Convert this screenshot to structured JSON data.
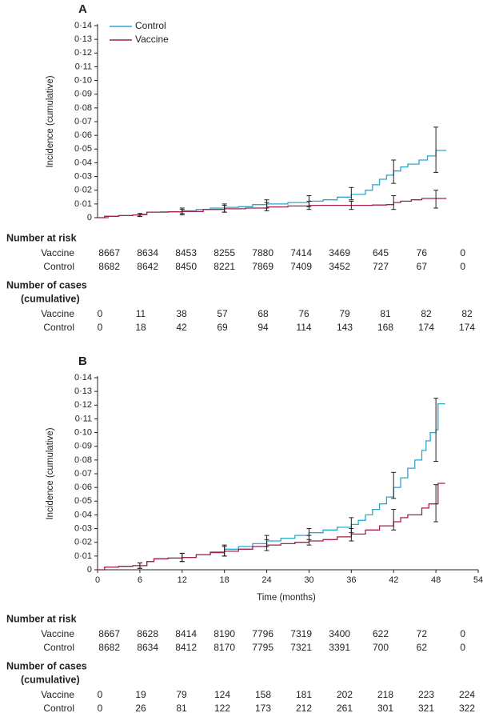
{
  "chart_data": [
    {
      "type": "line",
      "panel": "A",
      "ylabel": "Incidence (cumulative)",
      "xlabel": "",
      "xlim": [
        0,
        54
      ],
      "ylim": [
        0,
        0.14
      ],
      "x_ticks": [],
      "y_ticks": [
        0,
        0.01,
        0.02,
        0.03,
        0.04,
        0.05,
        0.06,
        0.07,
        0.08,
        0.09,
        0.1,
        0.11,
        0.12,
        0.13,
        0.14
      ],
      "y_tick_labels": [
        "0",
        "0·01",
        "0·02",
        "0·03",
        "0·04",
        "0·05",
        "0·06",
        "0·07",
        "0·08",
        "0·09",
        "0·10",
        "0·11",
        "0·12",
        "0·13",
        "0·14"
      ],
      "legend_position": "top-left",
      "series": [
        {
          "name": "Control",
          "color": "#2aa7cf",
          "points": [
            [
              0,
              0
            ],
            [
              1,
              0.001
            ],
            [
              3,
              0.0015
            ],
            [
              5,
              0.002
            ],
            [
              6,
              0.0025
            ],
            [
              7,
              0.004
            ],
            [
              9,
              0.0042
            ],
            [
              12,
              0.005
            ],
            [
              14,
              0.006
            ],
            [
              16,
              0.007
            ],
            [
              18,
              0.0075
            ],
            [
              20,
              0.008
            ],
            [
              22,
              0.0095
            ],
            [
              24,
              0.01
            ],
            [
              27,
              0.011
            ],
            [
              30,
              0.012
            ],
            [
              32,
              0.013
            ],
            [
              34,
              0.015
            ],
            [
              36,
              0.017
            ],
            [
              38,
              0.02
            ],
            [
              39,
              0.024
            ],
            [
              40,
              0.028
            ],
            [
              41,
              0.031
            ],
            [
              42,
              0.034
            ],
            [
              43,
              0.037
            ],
            [
              44,
              0.039
            ],
            [
              45,
              0.039
            ],
            [
              45.6,
              0.042
            ],
            [
              46.2,
              0.042
            ],
            [
              46.8,
              0.045
            ],
            [
              47.4,
              0.045
            ],
            [
              48,
              0.049
            ],
            [
              49.5,
              0.049
            ]
          ],
          "error_bars": [
            [
              6,
              0.002,
              0.001,
              0.003
            ],
            [
              12,
              0.0045,
              0.003,
              0.006
            ],
            [
              18,
              0.0072,
              0.004,
              0.01
            ],
            [
              24,
              0.01,
              0.007,
              0.013
            ],
            [
              30,
              0.012,
              0.008,
              0.016
            ],
            [
              36,
              0.017,
              0.013,
              0.022
            ],
            [
              42,
              0.033,
              0.025,
              0.042
            ],
            [
              48,
              0.049,
              0.033,
              0.066
            ]
          ]
        },
        {
          "name": "Vaccine",
          "color": "#a3224a",
          "points": [
            [
              0,
              0
            ],
            [
              1,
              0.001
            ],
            [
              3,
              0.0015
            ],
            [
              5,
              0.002
            ],
            [
              6,
              0.0022
            ],
            [
              7,
              0.004
            ],
            [
              10,
              0.0043
            ],
            [
              12,
              0.0045
            ],
            [
              15,
              0.006
            ],
            [
              18,
              0.0065
            ],
            [
              21,
              0.007
            ],
            [
              24,
              0.0078
            ],
            [
              27,
              0.0085
            ],
            [
              30,
              0.009
            ],
            [
              33,
              0.009
            ],
            [
              36,
              0.009
            ],
            [
              39,
              0.0092
            ],
            [
              41,
              0.0095
            ],
            [
              42,
              0.011
            ],
            [
              43,
              0.012
            ],
            [
              44.5,
              0.013
            ],
            [
              46,
              0.014
            ],
            [
              49.5,
              0.014
            ]
          ],
          "error_bars": [
            [
              6,
              0.0018,
              0.0008,
              0.003
            ],
            [
              12,
              0.0045,
              0.002,
              0.007
            ],
            [
              18,
              0.0065,
              0.004,
              0.009
            ],
            [
              24,
              0.0078,
              0.005,
              0.011
            ],
            [
              30,
              0.009,
              0.006,
              0.012
            ],
            [
              36,
              0.009,
              0.006,
              0.012
            ],
            [
              42,
              0.011,
              0.006,
              0.016
            ],
            [
              48,
              0.014,
              0.007,
              0.02
            ]
          ]
        }
      ]
    },
    {
      "type": "line",
      "panel": "B",
      "ylabel": "Incidence (cumulative)",
      "xlabel": "Time (months)",
      "xlim": [
        0,
        54
      ],
      "ylim": [
        0,
        0.14
      ],
      "x_ticks": [
        0,
        6,
        12,
        18,
        24,
        30,
        36,
        42,
        48,
        54
      ],
      "x_tick_labels": [
        "0",
        "6",
        "12",
        "18",
        "24",
        "30",
        "36",
        "42",
        "48",
        "54"
      ],
      "y_ticks": [
        0,
        0.01,
        0.02,
        0.03,
        0.04,
        0.05,
        0.06,
        0.07,
        0.08,
        0.09,
        0.1,
        0.11,
        0.12,
        0.13,
        0.14
      ],
      "y_tick_labels": [
        "0",
        "0·01",
        "0·02",
        "0·03",
        "0·04",
        "0·05",
        "0·06",
        "0·07",
        "0·08",
        "0·09",
        "0·10",
        "0·11",
        "0·12",
        "0·13",
        "0·14"
      ],
      "series": [
        {
          "name": "Control",
          "color": "#2aa7cf",
          "points": [
            [
              0,
              0
            ],
            [
              1,
              0.002
            ],
            [
              3,
              0.0025
            ],
            [
              5,
              0.003
            ],
            [
              6,
              0.003
            ],
            [
              7,
              0.006
            ],
            [
              8,
              0.008
            ],
            [
              10,
              0.0085
            ],
            [
              12,
              0.009
            ],
            [
              14,
              0.011
            ],
            [
              16,
              0.013
            ],
            [
              18,
              0.015
            ],
            [
              20,
              0.017
            ],
            [
              22,
              0.019
            ],
            [
              24,
              0.021
            ],
            [
              26,
              0.023
            ],
            [
              28,
              0.025
            ],
            [
              30,
              0.027
            ],
            [
              32,
              0.029
            ],
            [
              34,
              0.031
            ],
            [
              36,
              0.033
            ],
            [
              37,
              0.036
            ],
            [
              38,
              0.04
            ],
            [
              39,
              0.044
            ],
            [
              40,
              0.048
            ],
            [
              41,
              0.053
            ],
            [
              42,
              0.06
            ],
            [
              43,
              0.067
            ],
            [
              44,
              0.074
            ],
            [
              45,
              0.08
            ],
            [
              46,
              0.087
            ],
            [
              46.6,
              0.094
            ],
            [
              47.2,
              0.1
            ],
            [
              48,
              0.102
            ],
            [
              48.3,
              0.121
            ],
            [
              49.3,
              0.121
            ]
          ],
          "error_bars": [
            [
              6,
              0.003,
              0.001,
              0.005
            ],
            [
              12,
              0.009,
              0.006,
              0.012
            ],
            [
              18,
              0.0145,
              0.01,
              0.018
            ],
            [
              24,
              0.021,
              0.017,
              0.025
            ],
            [
              30,
              0.027,
              0.022,
              0.03
            ],
            [
              36,
              0.032,
              0.027,
              0.038
            ],
            [
              42,
              0.061,
              0.052,
              0.071
            ],
            [
              48,
              0.102,
              0.079,
              0.125
            ]
          ]
        },
        {
          "name": "Vaccine",
          "color": "#a3224a",
          "points": [
            [
              0,
              0
            ],
            [
              1,
              0.002
            ],
            [
              3,
              0.0025
            ],
            [
              5,
              0.003
            ],
            [
              6,
              0.003
            ],
            [
              7,
              0.006
            ],
            [
              8,
              0.008
            ],
            [
              10,
              0.0085
            ],
            [
              12,
              0.009
            ],
            [
              14,
              0.011
            ],
            [
              16,
              0.0125
            ],
            [
              18,
              0.0135
            ],
            [
              20,
              0.015
            ],
            [
              22,
              0.017
            ],
            [
              24,
              0.018
            ],
            [
              26,
              0.019
            ],
            [
              28,
              0.02
            ],
            [
              30,
              0.021
            ],
            [
              32,
              0.022
            ],
            [
              34,
              0.024
            ],
            [
              36,
              0.026
            ],
            [
              38,
              0.029
            ],
            [
              40,
              0.032
            ],
            [
              42,
              0.035
            ],
            [
              43,
              0.038
            ],
            [
              44,
              0.04
            ],
            [
              46,
              0.045
            ],
            [
              47,
              0.048
            ],
            [
              48,
              0.048
            ],
            [
              48.3,
              0.063
            ],
            [
              49.3,
              0.063
            ]
          ],
          "error_bars": [
            [
              6,
              0.003,
              0.001,
              0.005
            ],
            [
              12,
              0.009,
              0.006,
              0.012
            ],
            [
              18,
              0.0135,
              0.01,
              0.017
            ],
            [
              24,
              0.018,
              0.014,
              0.022
            ],
            [
              30,
              0.021,
              0.018,
              0.025
            ],
            [
              36,
              0.026,
              0.021,
              0.03
            ],
            [
              42,
              0.035,
              0.029,
              0.044
            ],
            [
              48,
              0.048,
              0.035,
              0.062
            ]
          ]
        }
      ]
    }
  ],
  "tables": [
    {
      "risk_heading": "Number at risk",
      "cases_heading_line1": "Number of cases",
      "cases_heading_line2": "(cumulative)",
      "risk_rows": [
        {
          "label": "Vaccine",
          "values": [
            "8667",
            "8634",
            "8453",
            "8255",
            "7880",
            "7414",
            "3469",
            "645",
            "76",
            "0"
          ]
        },
        {
          "label": "Control",
          "values": [
            "8682",
            "8642",
            "8450",
            "8221",
            "7869",
            "7409",
            "3452",
            "727",
            "67",
            "0"
          ]
        }
      ],
      "case_rows": [
        {
          "label": "Vaccine",
          "values": [
            "0",
            "11",
            "38",
            "57",
            "68",
            "76",
            "79",
            "81",
            "82",
            "82"
          ]
        },
        {
          "label": "Control",
          "values": [
            "0",
            "18",
            "42",
            "69",
            "94",
            "114",
            "143",
            "168",
            "174",
            "174"
          ]
        }
      ]
    },
    {
      "risk_heading": "Number at risk",
      "cases_heading_line1": "Number of cases",
      "cases_heading_line2": "(cumulative)",
      "risk_rows": [
        {
          "label": "Vaccine",
          "values": [
            "8667",
            "8628",
            "8414",
            "8190",
            "7796",
            "7319",
            "3400",
            "622",
            "72",
            "0"
          ]
        },
        {
          "label": "Control",
          "values": [
            "8682",
            "8634",
            "8412",
            "8170",
            "7795",
            "7321",
            "3391",
            "700",
            "62",
            "0"
          ]
        }
      ],
      "case_rows": [
        {
          "label": "Vaccine",
          "values": [
            "0",
            "19",
            "79",
            "124",
            "158",
            "181",
            "202",
            "218",
            "223",
            "224"
          ]
        },
        {
          "label": "Control",
          "values": [
            "0",
            "26",
            "81",
            "122",
            "173",
            "212",
            "261",
            "301",
            "321",
            "322"
          ]
        }
      ]
    }
  ]
}
